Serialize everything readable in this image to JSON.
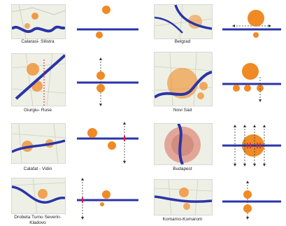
{
  "figure": {
    "colors": {
      "river": "#2a34a8",
      "settlement": "#f08a24",
      "map_background": "#eef0e6",
      "axis_marker": "#e0203a"
    },
    "panels": [
      {
        "id": "calarasi-silistra",
        "caption": "Calarasi- Silistra"
      },
      {
        "id": "belgrad",
        "caption": "Belgrad"
      },
      {
        "id": "giurgiu-ruse",
        "caption": "Giurgiu- Ruse"
      },
      {
        "id": "novi-sad",
        "caption": "Novi Sad"
      },
      {
        "id": "calafat-vidin",
        "caption": "Calafat - Vidin"
      },
      {
        "id": "budapest",
        "caption": "Budapest"
      },
      {
        "id": "drobeta-kladovo",
        "caption": "Drobeta Turnu Severin-Kladovo"
      },
      {
        "id": "komarno-komarom",
        "caption": "Komarno-Komarom"
      }
    ]
  }
}
